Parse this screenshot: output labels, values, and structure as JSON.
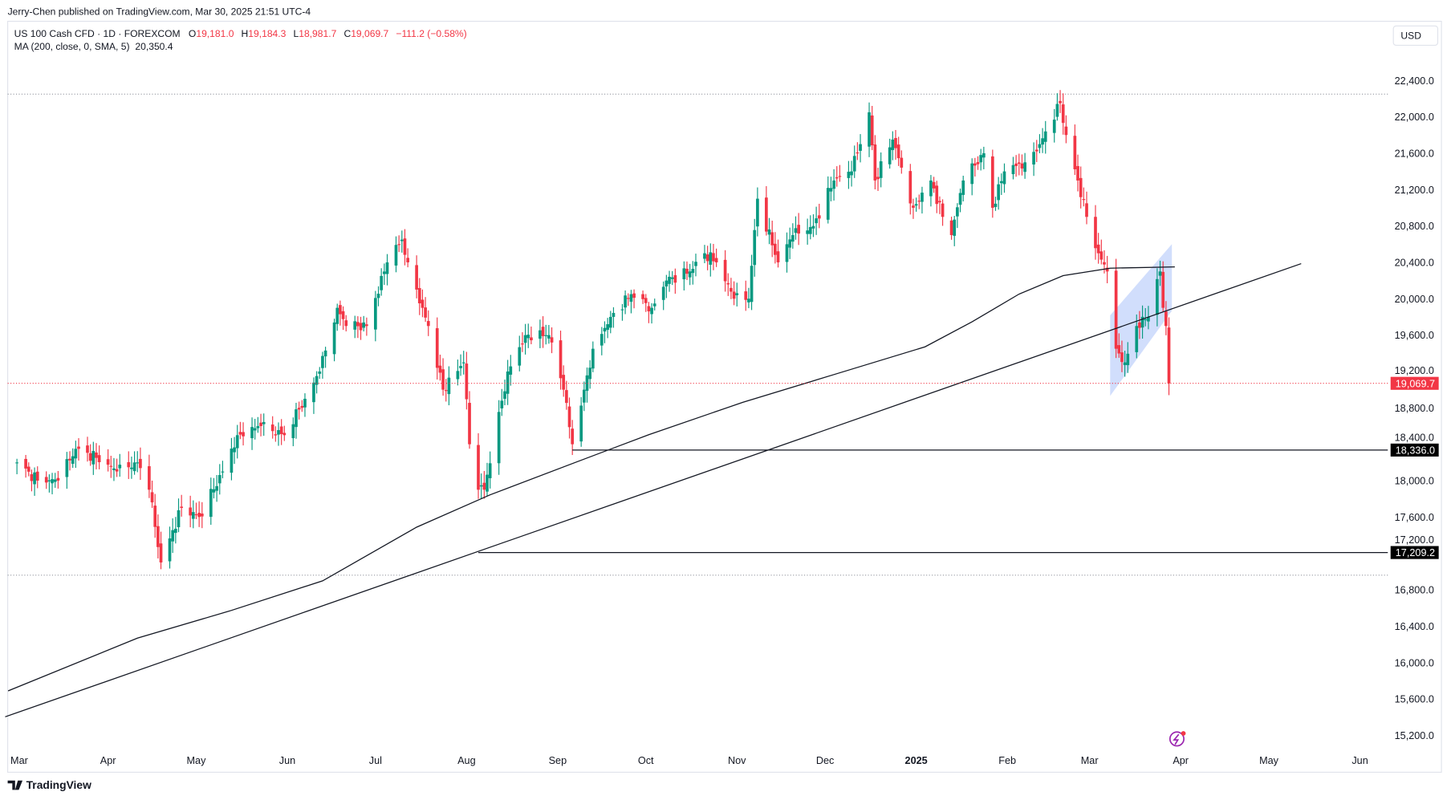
{
  "header": {
    "published": "Jerry-Chen published on TradingView.com, Mar 30, 2025 21:51 UTC-4"
  },
  "legend": {
    "symbol": "US 100 Cash CFD · 1D · FOREXCOM",
    "o_label": "O",
    "o": "19,181.0",
    "h_label": "H",
    "h": "19,184.3",
    "l_label": "L",
    "l": "18,981.7",
    "c_label": "C",
    "c": "19,069.7",
    "change": "−111.2 (−0.58%)",
    "ma": "MA (200, close, 0, SMA, 5)",
    "ma_value": "20,350.4"
  },
  "currency_button": "USD",
  "footer": {
    "logo": "TradingView"
  },
  "colors": {
    "up": "#089981",
    "down": "#f23645",
    "channel": "#c9d8fb",
    "line": "#131722",
    "alert": "#9c27b0"
  },
  "chart_data": {
    "type": "candlestick",
    "ylim": [
      15000,
      22600
    ],
    "y_ticks": [
      "22,400.0",
      "22,000.0",
      "21,600.0",
      "21,200.0",
      "20,800.0",
      "20,400.0",
      "20,000.0",
      "19,600.0",
      "19,200.0",
      "18,800.0",
      "18,400.0",
      "18,000.0",
      "17,600.0",
      "17,200.0",
      "16,800.0",
      "16,400.0",
      "16,000.0",
      "15,600.0",
      "15,200.0"
    ],
    "x_ticks": [
      {
        "label": "Mar",
        "date": "2024-03-01"
      },
      {
        "label": "Apr",
        "date": "2024-04-01"
      },
      {
        "label": "May",
        "date": "2024-05-01"
      },
      {
        "label": "Jun",
        "date": "2024-06-01"
      },
      {
        "label": "Jul",
        "date": "2024-07-01"
      },
      {
        "label": "Aug",
        "date": "2024-08-01"
      },
      {
        "label": "Sep",
        "date": "2024-09-01"
      },
      {
        "label": "Oct",
        "date": "2024-10-01"
      },
      {
        "label": "Nov",
        "date": "2024-11-01"
      },
      {
        "label": "Dec",
        "date": "2024-12-01"
      },
      {
        "label": "2025",
        "date": "2025-01-01"
      },
      {
        "label": "Feb",
        "date": "2025-02-01"
      },
      {
        "label": "Mar",
        "date": "2025-03-01"
      },
      {
        "label": "Apr",
        "date": "2025-04-01"
      },
      {
        "label": "May",
        "date": "2025-05-01"
      },
      {
        "label": "Jun",
        "date": "2025-06-01"
      }
    ],
    "close_path": [
      [
        "2024-03-01",
        18200
      ],
      [
        "2024-03-08",
        18000
      ],
      [
        "2024-03-15",
        18000
      ],
      [
        "2024-03-21",
        18350
      ],
      [
        "2024-03-28",
        18250
      ],
      [
        "2024-04-04",
        18100
      ],
      [
        "2024-04-11",
        18200
      ],
      [
        "2024-04-15",
        17900
      ],
      [
        "2024-04-19",
        17100
      ],
      [
        "2024-04-26",
        17700
      ],
      [
        "2024-05-02",
        17600
      ],
      [
        "2024-05-10",
        18100
      ],
      [
        "2024-05-15",
        18500
      ],
      [
        "2024-05-23",
        18600
      ],
      [
        "2024-05-31",
        18500
      ],
      [
        "2024-06-07",
        18900
      ],
      [
        "2024-06-12",
        19200
      ],
      [
        "2024-06-18",
        19900
      ],
      [
        "2024-06-21",
        19700
      ],
      [
        "2024-06-28",
        19700
      ],
      [
        "2024-07-05",
        20400
      ],
      [
        "2024-07-10",
        20650
      ],
      [
        "2024-07-12",
        20400
      ],
      [
        "2024-07-17",
        19900
      ],
      [
        "2024-07-19",
        19700
      ],
      [
        "2024-07-24",
        19000
      ],
      [
        "2024-07-31",
        19300
      ],
      [
        "2024-08-02",
        18400
      ],
      [
        "2024-08-05",
        17900
      ],
      [
        "2024-08-07",
        17900
      ],
      [
        "2024-08-15",
        19200
      ],
      [
        "2024-08-21",
        19600
      ],
      [
        "2024-08-29",
        19600
      ],
      [
        "2024-09-03",
        19000
      ],
      [
        "2024-09-06",
        18400
      ],
      [
        "2024-09-10",
        19000
      ],
      [
        "2024-09-13",
        19450
      ],
      [
        "2024-09-19",
        19800
      ],
      [
        "2024-09-26",
        20050
      ],
      [
        "2024-10-03",
        19900
      ],
      [
        "2024-10-08",
        20200
      ],
      [
        "2024-10-16",
        20300
      ],
      [
        "2024-10-21",
        20500
      ],
      [
        "2024-10-25",
        20400
      ],
      [
        "2024-10-31",
        20000
      ],
      [
        "2024-11-05",
        20000
      ],
      [
        "2024-11-08",
        21100
      ],
      [
        "2024-11-15",
        20400
      ],
      [
        "2024-11-20",
        20700
      ],
      [
        "2024-11-27",
        20800
      ],
      [
        "2024-12-04",
        21300
      ],
      [
        "2024-12-10",
        21400
      ],
      [
        "2024-12-16",
        22050
      ],
      [
        "2024-12-18",
        21300
      ],
      [
        "2024-12-24",
        21750
      ],
      [
        "2024-12-31",
        21000
      ],
      [
        "2025-01-06",
        21300
      ],
      [
        "2025-01-10",
        20900
      ],
      [
        "2025-01-13",
        20700
      ],
      [
        "2025-01-17",
        21300
      ],
      [
        "2025-01-24",
        21600
      ],
      [
        "2025-01-27",
        21000
      ],
      [
        "2025-01-31",
        21400
      ],
      [
        "2025-02-07",
        21500
      ],
      [
        "2025-02-12",
        21700
      ],
      [
        "2025-02-19",
        22150
      ],
      [
        "2025-02-21",
        21800
      ],
      [
        "2025-02-25",
        21300
      ],
      [
        "2025-02-28",
        20900
      ],
      [
        "2025-03-04",
        20500
      ],
      [
        "2025-03-07",
        20300
      ],
      [
        "2025-03-10",
        19450
      ],
      [
        "2025-03-13",
        19300
      ],
      [
        "2025-03-17",
        19700
      ],
      [
        "2025-03-21",
        19800
      ],
      [
        "2025-03-25",
        20300
      ],
      [
        "2025-03-26",
        19900
      ],
      [
        "2025-03-27",
        19700
      ],
      [
        "2025-03-28",
        19069.7
      ]
    ],
    "ma200": [
      [
        "2024-02-27",
        15688
      ],
      [
        "2024-04-11",
        16268
      ],
      [
        "2024-05-13",
        16573
      ],
      [
        "2024-06-13",
        16898
      ],
      [
        "2024-07-15",
        17488
      ],
      [
        "2024-08-09",
        17844
      ],
      [
        "2024-09-07",
        18200
      ],
      [
        "2024-10-02",
        18505
      ],
      [
        "2024-11-03",
        18861
      ],
      [
        "2024-12-04",
        19166
      ],
      [
        "2025-01-04",
        19471
      ],
      [
        "2025-01-20",
        19746
      ],
      [
        "2025-02-05",
        20051
      ],
      [
        "2025-02-20",
        20254
      ],
      [
        "2025-03-08",
        20336
      ],
      [
        "2025-03-30",
        20350.4
      ]
    ],
    "trendline": [
      [
        "2024-02-26",
        15403
      ],
      [
        "2025-05-12",
        20386
      ]
    ],
    "channel": {
      "start": "2025-03-08",
      "end": "2025-03-29",
      "start_range": [
        18932,
        19817
      ],
      "end_range": [
        19868,
        20600
      ]
    },
    "range_lines": [
      22250,
      16960
    ],
    "horizontal_levels": [
      {
        "price": 18336.0,
        "label": "18,336.0",
        "from": "2024-09-06"
      },
      {
        "price": 17209.2,
        "label": "17,209.2",
        "from": "2024-08-05"
      }
    ],
    "last_price": {
      "price": 19069.7,
      "label": "19,069.7"
    }
  }
}
